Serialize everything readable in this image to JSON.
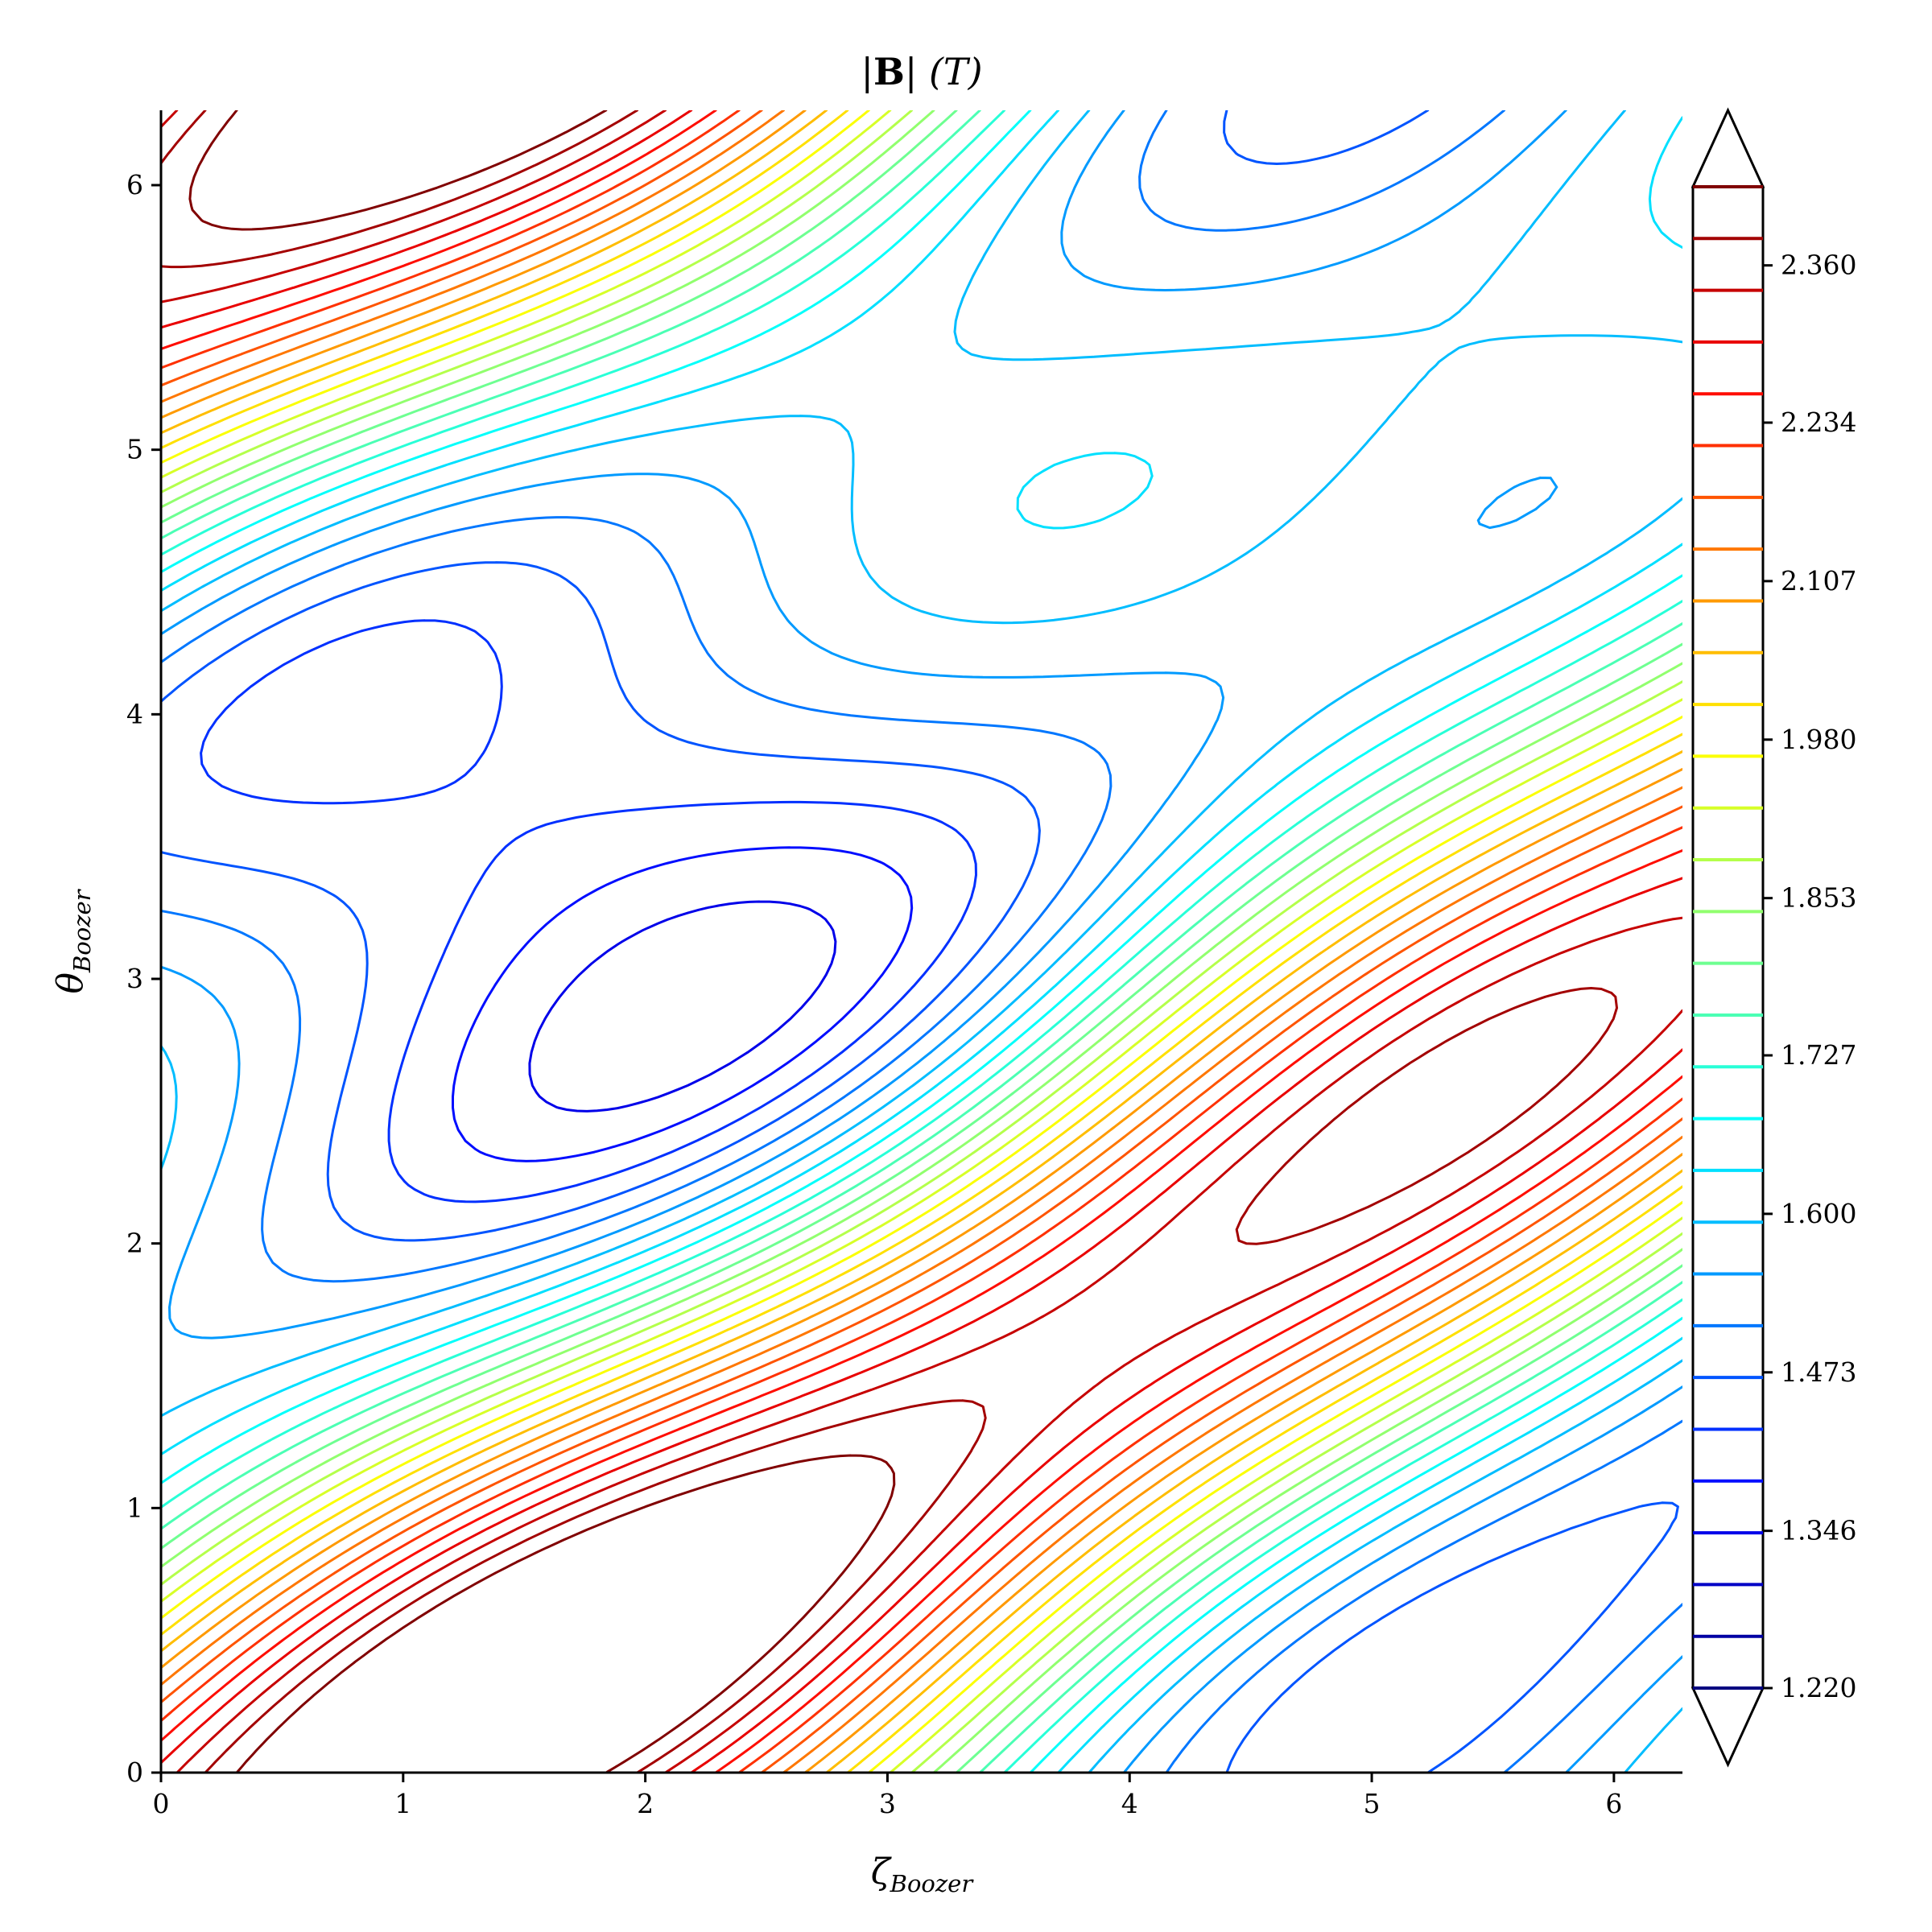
{
  "chart_data": {
    "type": "contour",
    "title": "|B| (T)",
    "title_parts": {
      "bar_open": "|",
      "bold": "B",
      "bar_close": "|",
      "unit": " (T)"
    },
    "xlabel": {
      "symbol": "ζ",
      "subscript": "Boozer"
    },
    "ylabel": {
      "symbol": "θ",
      "subscript": "Boozer"
    },
    "xlim": [
      0,
      6.283
    ],
    "ylim": [
      0,
      6.283
    ],
    "xticks": [
      "0",
      "1",
      "2",
      "3",
      "4",
      "5",
      "6"
    ],
    "yticks": [
      "0",
      "1",
      "2",
      "3",
      "4",
      "5",
      "6"
    ],
    "colorbar": {
      "min": 1.22,
      "max": 2.423,
      "extend": "both",
      "colormap": "jet",
      "tick_labels": [
        "1.220",
        "1.346",
        "1.473",
        "1.600",
        "1.727",
        "1.853",
        "1.980",
        "2.107",
        "2.234",
        "2.360"
      ],
      "n_levels": 30
    },
    "field_description": "Contour levels of |B| over Boozer angles; low field (blue) band between theta 2 and 4, high field (red) near zeta 2-3.5 at top and bottom edges"
  }
}
